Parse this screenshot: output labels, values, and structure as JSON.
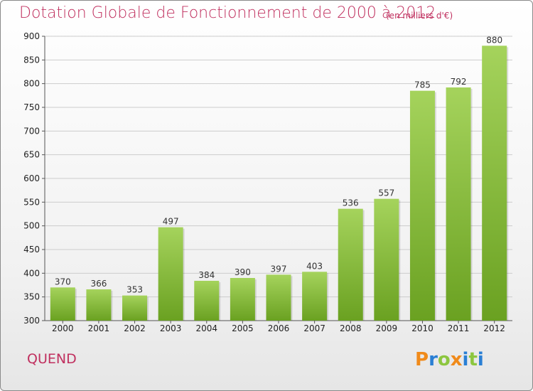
{
  "title": "Dotation Globale de Fonctionnement de 2000 à 2012",
  "subtitle": "(en milliers d'€)",
  "commune": "QUEND",
  "logo": {
    "letters": [
      "P",
      "r",
      "o",
      "x",
      "i",
      "t",
      "i"
    ],
    "colors": [
      "#f08a1a",
      "#2a7fd4",
      "#8cc63f",
      "#f08a1a",
      "#2a7fd4",
      "#8cc63f",
      "#2a7fd4"
    ]
  },
  "colors": {
    "accent": "#c0305f",
    "bar_top": "#a5d35c",
    "bar_bottom": "#6aa121",
    "grid": "#cccccc"
  },
  "chart_data": {
    "type": "bar",
    "categories": [
      "2000",
      "2001",
      "2002",
      "2003",
      "2004",
      "2005",
      "2006",
      "2007",
      "2008",
      "2009",
      "2010",
      "2011",
      "2012"
    ],
    "values": [
      370,
      366,
      353,
      497,
      384,
      390,
      397,
      403,
      536,
      557,
      785,
      792,
      880
    ],
    "title": "Dotation Globale de Fonctionnement de 2000 à 2012",
    "subtitle": "(en milliers d'€)",
    "ylim": [
      300,
      900
    ],
    "yticks": [
      300,
      350,
      400,
      450,
      500,
      550,
      600,
      650,
      700,
      750,
      800,
      850,
      900
    ],
    "grid": true,
    "data_labels": true
  }
}
